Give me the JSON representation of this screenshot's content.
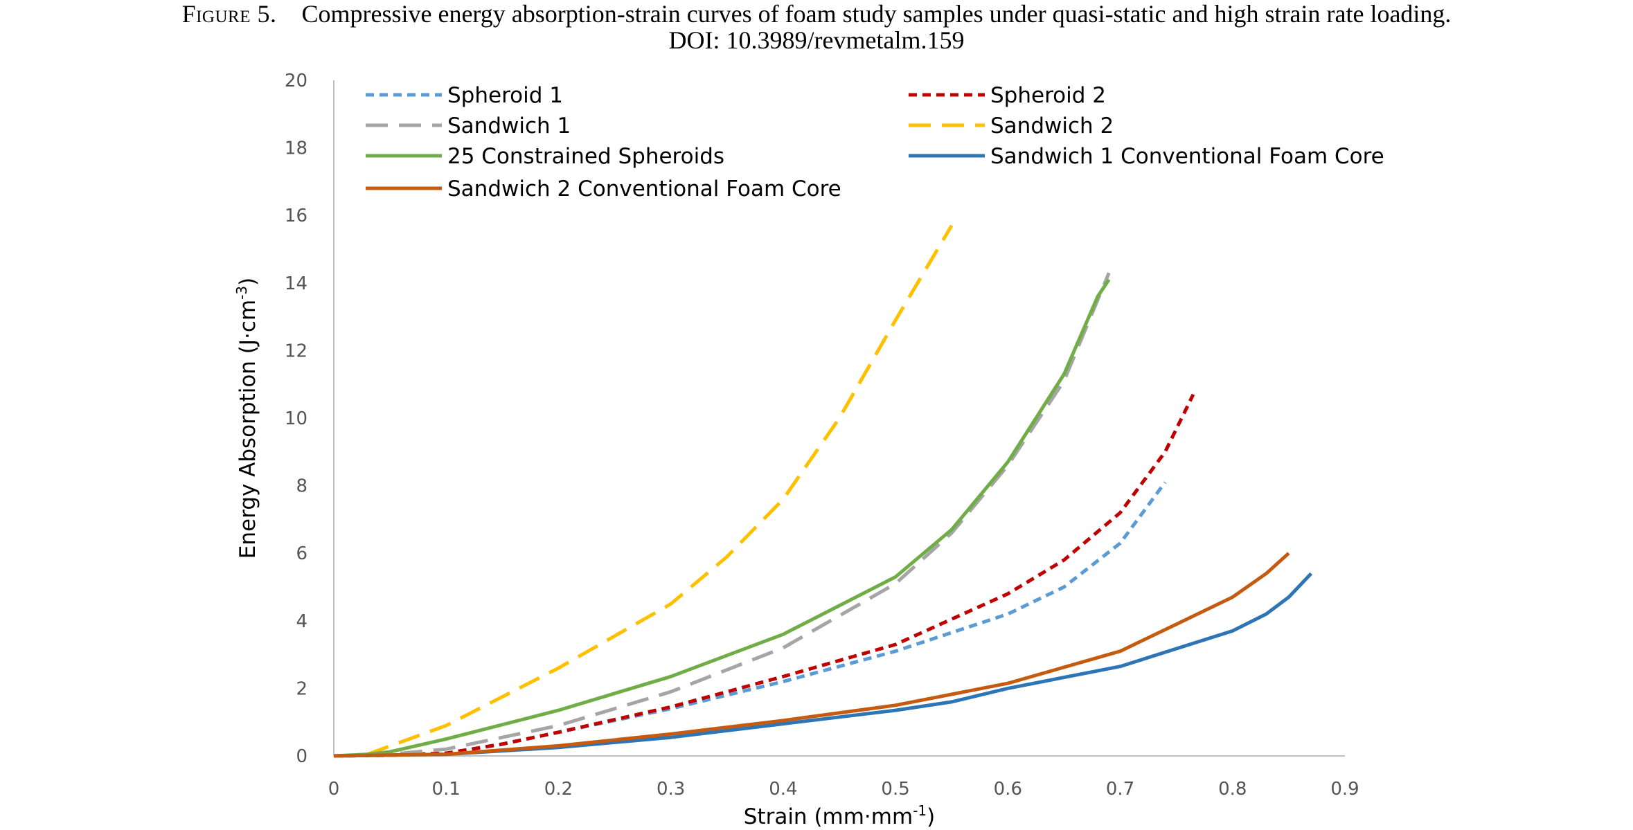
{
  "caption": {
    "figure_label": "Figure 5.",
    "text": "Compressive energy absorption-strain curves of foam study samples under quasi-static and high strain rate loading.",
    "doi_label": "DOI",
    "doi": ": 10.3989/revmetalm.159"
  },
  "chart_data": {
    "type": "line",
    "xlabel": "Strain (mm·mm",
    "xlabel_sup": "-1",
    "xlabel_tail": ")",
    "ylabel": "Energy Absorption (J·cm",
    "ylabel_sup": "-3",
    "ylabel_tail": ")",
    "xlim": [
      0,
      0.9
    ],
    "ylim": [
      0,
      20
    ],
    "xticks": [
      "0",
      "0.1",
      "0.2",
      "0.3",
      "0.4",
      "0.5",
      "0.6",
      "0.7",
      "0.8",
      "0.9"
    ],
    "yticks": [
      "0",
      "2",
      "4",
      "6",
      "8",
      "10",
      "12",
      "14",
      "16",
      "18",
      "20"
    ],
    "grid": false,
    "legend_placement": "top",
    "series": [
      {
        "name": "Spheroid 1",
        "color": "#5B9BD5",
        "dash": "short",
        "x": [
          0,
          0.05,
          0.1,
          0.15,
          0.2,
          0.3,
          0.4,
          0.5,
          0.6,
          0.65,
          0.7,
          0.74
        ],
        "y": [
          0,
          0.02,
          0.08,
          0.35,
          0.7,
          1.4,
          2.2,
          3.1,
          4.2,
          5.0,
          6.3,
          8.1
        ]
      },
      {
        "name": "Spheroid 2",
        "color": "#C00000",
        "dash": "short",
        "x": [
          0,
          0.05,
          0.1,
          0.15,
          0.2,
          0.3,
          0.4,
          0.5,
          0.6,
          0.65,
          0.7,
          0.74,
          0.765
        ],
        "y": [
          0,
          0.02,
          0.08,
          0.35,
          0.7,
          1.45,
          2.35,
          3.3,
          4.8,
          5.8,
          7.2,
          9.0,
          10.7
        ]
      },
      {
        "name": "Sandwich 1",
        "color": "#A5A5A5",
        "dash": "long",
        "x": [
          0,
          0.05,
          0.1,
          0.2,
          0.3,
          0.4,
          0.5,
          0.55,
          0.6,
          0.65,
          0.69
        ],
        "y": [
          0,
          0.05,
          0.2,
          0.9,
          1.9,
          3.2,
          5.1,
          6.6,
          8.6,
          11.1,
          14.3
        ]
      },
      {
        "name": "Sandwich 2",
        "color": "#FFC000",
        "dash": "long",
        "x": [
          0.03,
          0.1,
          0.2,
          0.3,
          0.35,
          0.4,
          0.45,
          0.5,
          0.55
        ],
        "y": [
          0.05,
          0.9,
          2.6,
          4.5,
          5.9,
          7.6,
          10.0,
          12.9,
          15.7
        ]
      },
      {
        "name": "25 Constrained Spheroids",
        "color": "#70AD47",
        "dash": "solid",
        "x": [
          0,
          0.03,
          0.05,
          0.1,
          0.2,
          0.3,
          0.4,
          0.5,
          0.55,
          0.6,
          0.65,
          0.68,
          0.69
        ],
        "y": [
          0,
          0.05,
          0.12,
          0.5,
          1.35,
          2.35,
          3.6,
          5.3,
          6.7,
          8.7,
          11.3,
          13.6,
          14.1
        ]
      },
      {
        "name": "Sandwich 1 Conventional Foam Core",
        "color": "#2E75B6",
        "dash": "solid",
        "x": [
          0,
          0.1,
          0.2,
          0.3,
          0.4,
          0.5,
          0.55,
          0.6,
          0.7,
          0.8,
          0.83,
          0.85,
          0.87
        ],
        "y": [
          0,
          0.05,
          0.25,
          0.55,
          0.95,
          1.35,
          1.6,
          2.0,
          2.65,
          3.7,
          4.2,
          4.7,
          5.4
        ]
      },
      {
        "name": "Sandwich 2 Conventional Foam Core",
        "color": "#C55A11",
        "dash": "solid",
        "x": [
          0,
          0.1,
          0.2,
          0.3,
          0.4,
          0.5,
          0.6,
          0.7,
          0.75,
          0.8,
          0.83,
          0.85
        ],
        "y": [
          0,
          0.05,
          0.3,
          0.65,
          1.05,
          1.5,
          2.15,
          3.1,
          3.9,
          4.7,
          5.4,
          6.0
        ]
      }
    ]
  }
}
